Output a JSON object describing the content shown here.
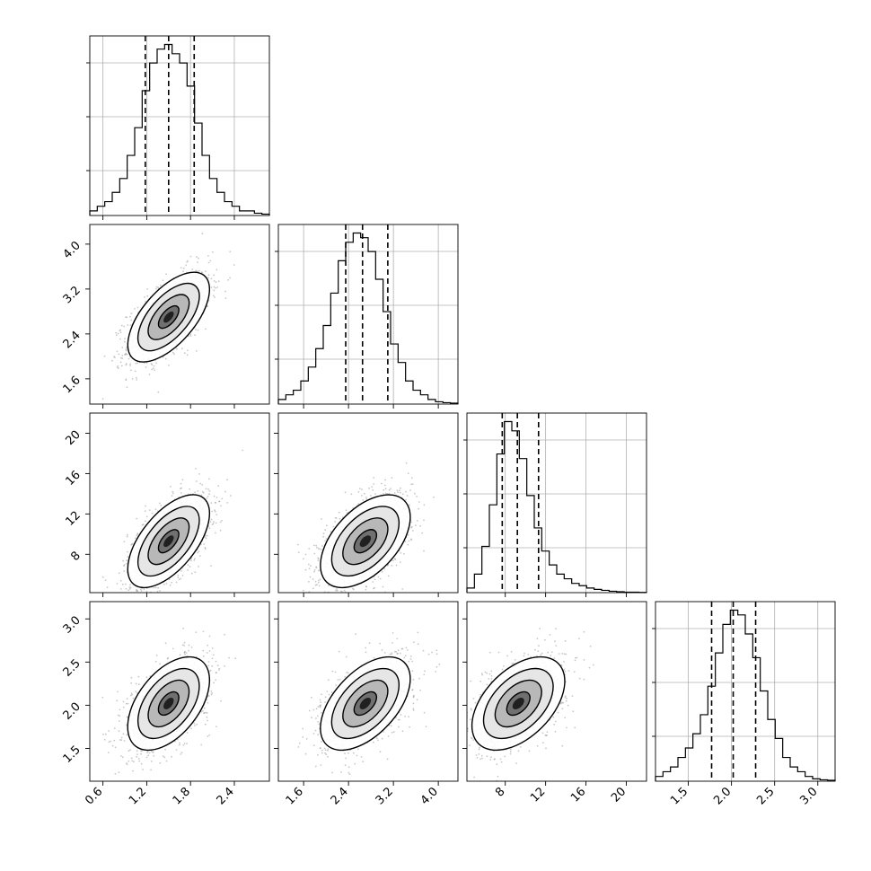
{
  "chart_data": {
    "type": "corner",
    "parameters": [
      "",
      "",
      "",
      ""
    ],
    "ranges": [
      [
        0.42,
        2.88
      ],
      [
        1.15,
        4.35
      ],
      [
        4.2,
        22.0
      ],
      [
        1.12,
        3.2
      ]
    ],
    "ticks": [
      [
        "0.6",
        "1.2",
        "1.8",
        "2.4"
      ],
      [
        "1.6",
        "2.4",
        "3.2",
        "4.0"
      ],
      [
        "8",
        "12",
        "16",
        "20"
      ],
      [
        "1.5",
        "2.0",
        "2.5",
        "3.0"
      ]
    ],
    "grid": true,
    "quantiles": [
      [
        1.18,
        1.5,
        1.85
      ],
      [
        2.35,
        2.65,
        3.1
      ],
      [
        7.7,
        9.2,
        11.3
      ],
      [
        1.77,
        2.02,
        2.28
      ]
    ],
    "histograms": [
      {
        "bin_edges": [
          0.42,
          2.88
        ],
        "counts": [
          1,
          2,
          3,
          5,
          8,
          13,
          19,
          27,
          33,
          36,
          37,
          35,
          33,
          28,
          20,
          13,
          8,
          5,
          3,
          2,
          1,
          1,
          0.5,
          0.3
        ]
      },
      {
        "bin_edges": [
          1.15,
          4.35
        ],
        "counts": [
          1,
          2,
          3,
          5,
          8,
          12,
          17,
          24,
          31,
          35,
          37,
          36,
          33,
          27,
          20,
          13,
          9,
          5,
          3,
          2,
          1,
          0.5,
          0.3,
          0.2
        ]
      },
      {
        "bin_edges": [
          4.2,
          22.0
        ],
        "counts": [
          1,
          4,
          10,
          19,
          30,
          37,
          35,
          29,
          21,
          14,
          9,
          6,
          4,
          3,
          2,
          1.5,
          1,
          0.7,
          0.5,
          0.3,
          0.2,
          0.1,
          0.1,
          0.05
        ]
      },
      {
        "bin_edges": [
          1.12,
          3.2
        ],
        "counts": [
          1,
          2,
          3,
          5,
          7,
          10,
          14,
          20,
          27,
          33,
          36,
          35,
          31,
          26,
          19,
          13,
          9,
          5,
          3,
          2,
          1,
          0.5,
          0.3,
          0.2
        ]
      }
    ],
    "pairs": [
      {
        "row": 1,
        "col": 0,
        "center": [
          1.5,
          2.7
        ],
        "sd": [
          0.28,
          0.4
        ],
        "corr": 0.62
      },
      {
        "row": 2,
        "col": 0,
        "center": [
          1.5,
          9.3
        ],
        "sd": [
          0.28,
          2.3
        ],
        "corr": 0.6
      },
      {
        "row": 2,
        "col": 1,
        "center": [
          2.7,
          9.3
        ],
        "sd": [
          0.4,
          2.3
        ],
        "corr": 0.52
      },
      {
        "row": 3,
        "col": 0,
        "center": [
          1.5,
          2.02
        ],
        "sd": [
          0.28,
          0.27
        ],
        "corr": 0.5
      },
      {
        "row": 3,
        "col": 1,
        "center": [
          2.7,
          2.02
        ],
        "sd": [
          0.4,
          0.27
        ],
        "corr": 0.53
      },
      {
        "row": 3,
        "col": 2,
        "center": [
          9.3,
          2.02
        ],
        "sd": [
          2.3,
          0.27
        ],
        "corr": 0.48
      }
    ],
    "contour_levels_sigma": [
      0.5,
      1.0,
      1.5,
      2.0
    ]
  }
}
